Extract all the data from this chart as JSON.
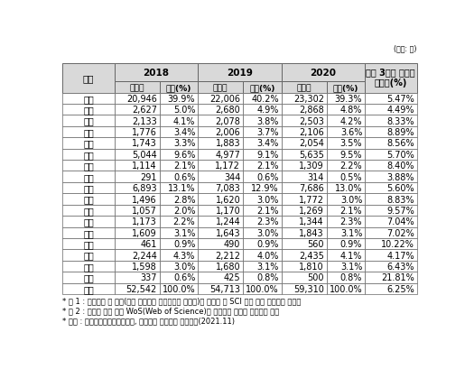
{
  "unit_label": "(단위: 건)",
  "rows": [
    [
      "서울",
      "20,946",
      "39.9%",
      "22,006",
      "40.2%",
      "23,302",
      "39.3%",
      "5.47%"
    ],
    [
      "부산",
      "2,627",
      "5.0%",
      "2,680",
      "4.9%",
      "2,868",
      "4.8%",
      "4.49%"
    ],
    [
      "대구",
      "2,133",
      "4.1%",
      "2,078",
      "3.8%",
      "2,503",
      "4.2%",
      "8.33%"
    ],
    [
      "인천",
      "1,776",
      "3.4%",
      "2,006",
      "3.7%",
      "2,106",
      "3.6%",
      "8.89%"
    ],
    [
      "광주",
      "1,743",
      "3.3%",
      "1,883",
      "3.4%",
      "2,054",
      "3.5%",
      "8.56%"
    ],
    [
      "대전",
      "5,044",
      "9.6%",
      "4,977",
      "9.1%",
      "5,635",
      "9.5%",
      "5.70%"
    ],
    [
      "울산",
      "1,114",
      "2.1%",
      "1,172",
      "2.1%",
      "1,309",
      "2.2%",
      "8.40%"
    ],
    [
      "세종",
      "291",
      "0.6%",
      "344",
      "0.6%",
      "314",
      "0.5%",
      "3.88%"
    ],
    [
      "경기",
      "6,893",
      "13.1%",
      "7,083",
      "12.9%",
      "7,686",
      "13.0%",
      "5.60%"
    ],
    [
      "강원",
      "1,496",
      "2.8%",
      "1,620",
      "3.0%",
      "1,772",
      "3.0%",
      "8.83%"
    ],
    [
      "충북",
      "1,057",
      "2.0%",
      "1,170",
      "2.1%",
      "1,269",
      "2.1%",
      "9.57%"
    ],
    [
      "충남",
      "1,173",
      "2.2%",
      "1,244",
      "2.3%",
      "1,344",
      "2.3%",
      "7.04%"
    ],
    [
      "전북",
      "1,609",
      "3.1%",
      "1,643",
      "3.0%",
      "1,843",
      "3.1%",
      "7.02%"
    ],
    [
      "전남",
      "461",
      "0.9%",
      "490",
      "0.9%",
      "560",
      "0.9%",
      "10.22%"
    ],
    [
      "경북",
      "2,244",
      "4.3%",
      "2,212",
      "4.0%",
      "2,435",
      "4.1%",
      "4.17%"
    ],
    [
      "경남",
      "1,598",
      "3.0%",
      "1,680",
      "3.1%",
      "1,810",
      "3.1%",
      "6.43%"
    ],
    [
      "제주",
      "337",
      "0.6%",
      "425",
      "0.8%",
      "500",
      "0.8%",
      "21.81%"
    ],
    [
      "옵계",
      "52,542",
      "100.0%",
      "54,713",
      "100.0%",
      "59,310",
      "100.0%",
      "6.25%"
    ]
  ],
  "footnotes": [
    "* 주 1 : 지역분류 중 기타(분산 수행되어 지역분류가 불가능)와 해외로 된 SCI 논문 수는 충계에서 제외함",
    "* 주 2 : 지역별 논문 수는 WoS(Web of Science)에 기반하여 주저자 기준으로 분류",
    "* 출처 : 한국과학기술기획평가원, 과학기술 논문성과 분석연구(2021.11)"
  ],
  "header_bg": "#d9d9d9",
  "total_bg": "#e8e8e8",
  "border_color": "#666666",
  "text_color": "#000000",
  "header_fontsize": 7.5,
  "cell_fontsize": 7.0,
  "footnote_fontsize": 6.0
}
